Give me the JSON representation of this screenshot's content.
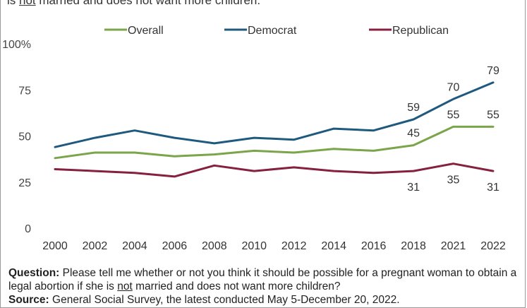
{
  "header": {
    "subtitle_pre": "is ",
    "subtitle_em": "not",
    "subtitle_post": " married and does not want more children."
  },
  "chart_data": {
    "type": "line",
    "title": "",
    "xlabel": "",
    "ylabel": "",
    "x": [
      "2000",
      "2002",
      "2004",
      "2006",
      "2008",
      "2010",
      "2012",
      "2014",
      "2016",
      "2018",
      "2021",
      "2022"
    ],
    "ylim": [
      0,
      100
    ],
    "yticks": [
      "0",
      "25",
      "50",
      "75",
      "100%"
    ],
    "grid": false,
    "legend_position": "top",
    "series": [
      {
        "name": "Overall",
        "color": "#7aa54a",
        "values": [
          38,
          41,
          41,
          39,
          40,
          42,
          41,
          43,
          42,
          45,
          55,
          55
        ]
      },
      {
        "name": "Democrat",
        "color": "#1f5a7e",
        "values": [
          44,
          49,
          53,
          49,
          46,
          49,
          48,
          54,
          53,
          59,
          70,
          79
        ]
      },
      {
        "name": "Republican",
        "color": "#86203f",
        "values": [
          32,
          31,
          30,
          28,
          34,
          31,
          33,
          31,
          30,
          31,
          35,
          31
        ]
      }
    ],
    "annotations": [
      {
        "series": 1,
        "index": 9,
        "text": "59",
        "pos": "above"
      },
      {
        "series": 1,
        "index": 10,
        "text": "70",
        "pos": "above"
      },
      {
        "series": 1,
        "index": 11,
        "text": "79",
        "pos": "above"
      },
      {
        "series": 0,
        "index": 9,
        "text": "45",
        "pos": "above"
      },
      {
        "series": 0,
        "index": 10,
        "text": "55",
        "pos": "above"
      },
      {
        "series": 0,
        "index": 11,
        "text": "55",
        "pos": "above"
      },
      {
        "series": 2,
        "index": 9,
        "text": "31",
        "pos": "below"
      },
      {
        "series": 2,
        "index": 10,
        "text": "35",
        "pos": "below"
      },
      {
        "series": 2,
        "index": 11,
        "text": "31",
        "pos": "below"
      }
    ]
  },
  "footer": {
    "question_label": "Question:",
    "question_pre": " Please tell me whether or not you think it should be possible for a pregnant woman to obtain a legal abortion if she is ",
    "question_em": "not",
    "question_post": " married and does not want more children?",
    "source_label": "Source:",
    "source_text": " General Social Survey, the latest conducted May 5-December 20, 2022."
  }
}
